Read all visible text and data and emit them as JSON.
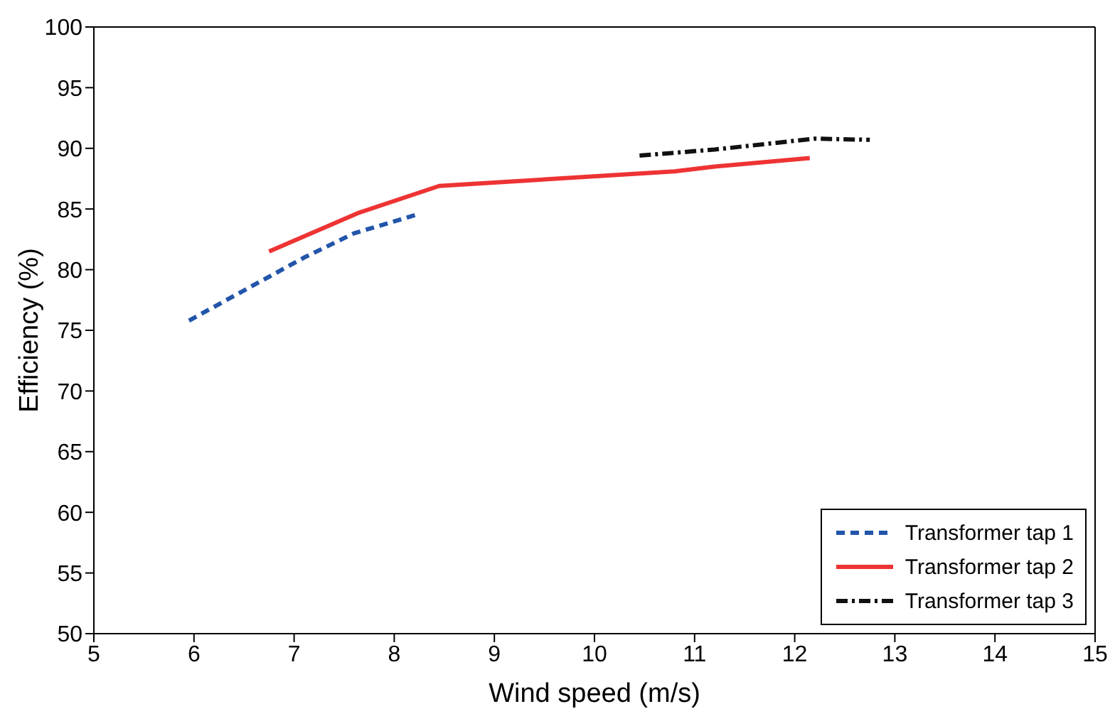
{
  "chart_data": {
    "type": "line",
    "xlabel": "Wind speed (m/s)",
    "ylabel": "Efficiency (%)",
    "xlim": [
      5,
      15
    ],
    "xticks": [
      5,
      6,
      7,
      8,
      9,
      10,
      11,
      12,
      13,
      14,
      15
    ],
    "ylim": [
      50,
      100
    ],
    "yticks": [
      50,
      55,
      60,
      65,
      70,
      75,
      80,
      85,
      90,
      95,
      100
    ],
    "grid": false,
    "legend": "bottom right",
    "marker": "none",
    "series": [
      {
        "name": "Transformer tap 1",
        "color": "#2255aa",
        "line_style": "dashed",
        "x": [
          5.95,
          7.1,
          7.6,
          8.25
        ],
        "values": [
          75.8,
          81.0,
          83.0,
          84.6
        ]
      },
      {
        "name": "Transformer tap 2",
        "color": "#ee3333",
        "line_style": "solid",
        "x": [
          6.75,
          7.65,
          8.45,
          10.8,
          11.2,
          12.15
        ],
        "values": [
          81.5,
          84.7,
          86.9,
          88.1,
          88.5,
          89.2
        ]
      },
      {
        "name": "Transformer tap 3",
        "color": "#111111",
        "line_style": "dashdot",
        "x": [
          10.45,
          11.2,
          12.2,
          12.75
        ],
        "values": [
          89.4,
          89.9,
          90.8,
          90.7
        ]
      }
    ]
  }
}
